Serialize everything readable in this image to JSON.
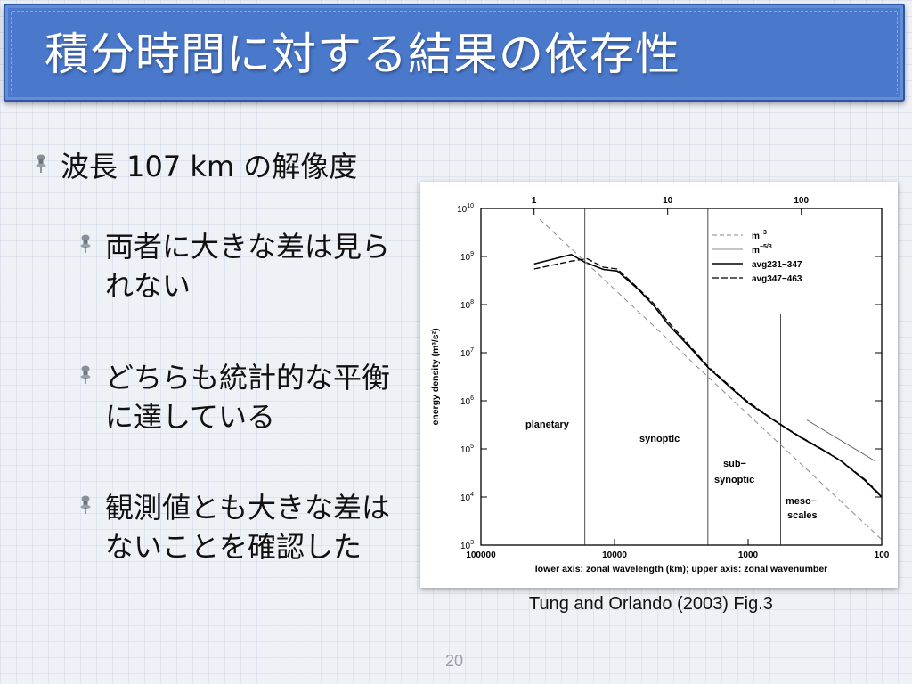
{
  "slide": {
    "title": "積分時間に対する結果の依存性",
    "bullets": [
      "波長 107 km の解像度",
      "両者に大きな差は見られない",
      "どちらも統計的な平衡に達している",
      "観測値とも大きな差はないことを確認した"
    ],
    "caption": "Tung and Orlando (2003) Fig.3",
    "page_number": "20"
  },
  "chart_data": {
    "type": "line",
    "xscale": "log",
    "yscale": "log",
    "x_lower_ticks": [
      "100000",
      "10000",
      "1000",
      "100"
    ],
    "x_upper_ticks": [
      "1",
      "10",
      "100"
    ],
    "y_ticks": [
      {
        "base": "10",
        "exp": "3"
      },
      {
        "base": "10",
        "exp": "4"
      },
      {
        "base": "10",
        "exp": "5"
      },
      {
        "base": "10",
        "exp": "6"
      },
      {
        "base": "10",
        "exp": "7"
      },
      {
        "base": "10",
        "exp": "8"
      },
      {
        "base": "10",
        "exp": "9"
      },
      {
        "base": "10",
        "exp": "10"
      }
    ],
    "xlabel": "lower axis: zonal wavelength (km); upper axis: zonal wavenumber",
    "ylabel": "energy density (m³/s²)",
    "xlim_wavenumber": [
      0.4,
      400
    ],
    "ylim": [
      1000,
      10000000000
    ],
    "legend_position": "top-right",
    "legend": [
      {
        "label": "m",
        "sup": "−3",
        "style": "dashed-grey"
      },
      {
        "label": "m",
        "sup": "−5/3",
        "style": "solid-grey"
      },
      {
        "label": "avg231−347",
        "style": "solid"
      },
      {
        "label": "avg347−463",
        "style": "dashed"
      }
    ],
    "region_labels": [
      "planetary",
      "synoptic",
      "sub−",
      "synoptic",
      "meso−",
      "scales"
    ],
    "series": [
      {
        "name": "avg231−347",
        "x": [
          1,
          1.9,
          2.4,
          3.3,
          4.2,
          6,
          8,
          10,
          15,
          20,
          30,
          40,
          60,
          80,
          100,
          150,
          200,
          300,
          400
        ],
        "y": [
          700000000,
          1100000000,
          760000000,
          540000000,
          500000000,
          210000000,
          90000000,
          40000000,
          12000000,
          5000000,
          1800000,
          900000,
          420000,
          250000,
          170000,
          90000,
          55000,
          22000,
          10000
        ]
      },
      {
        "name": "avg347−463",
        "x": [
          1,
          1.9,
          2.5,
          3.3,
          4.2,
          6,
          8,
          10,
          15,
          20,
          30,
          40,
          60,
          80,
          100,
          150,
          200,
          300,
          400
        ],
        "y": [
          550000000,
          800000000,
          900000000,
          600000000,
          550000000,
          220000000,
          100000000,
          45000000,
          13000000,
          5200000,
          1900000,
          950000,
          430000,
          255000,
          175000,
          92000,
          56000,
          23000,
          10500
        ]
      },
      {
        "name": "m−3",
        "x": [
          1.1,
          400
        ],
        "y": [
          6000000000,
          1300
        ]
      },
      {
        "name": "m−5/3",
        "x": [
          110,
          360
        ],
        "y": [
          400000,
          55000
        ]
      }
    ],
    "vertical_markers_wavenumber": [
      2.4,
      20,
      70
    ]
  }
}
